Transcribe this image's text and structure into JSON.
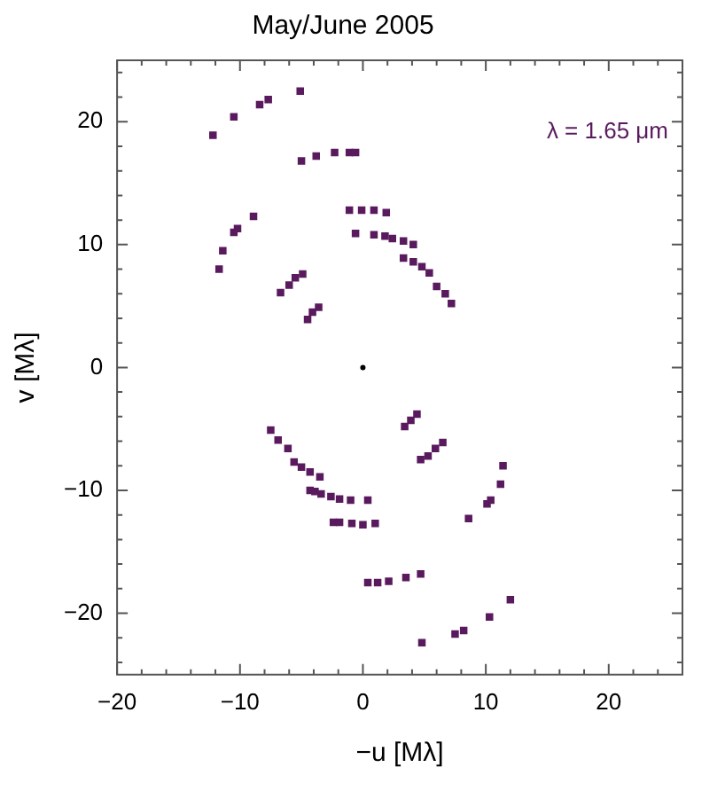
{
  "chart_data": {
    "type": "scatter",
    "title": "May/June 2005",
    "xlabel": "−u [Mλ]",
    "ylabel": "v [Mλ]",
    "annotations": [
      "λ = 1.65 μm"
    ],
    "xlim": [
      -20,
      26
    ],
    "ylim": [
      -25,
      25
    ],
    "xticks": [
      -20,
      {
        "value": -18,
        "label": null
      },
      {
        "value": -16,
        "label": null
      },
      {
        "value": -14,
        "label": null
      },
      {
        "value": -12,
        "label": null
      },
      -10,
      {
        "value": -8,
        "label": null
      },
      {
        "value": -6,
        "label": null
      },
      {
        "value": -4,
        "label": null
      },
      {
        "value": -2,
        "label": null
      },
      0,
      {
        "value": 2,
        "label": null
      },
      {
        "value": 4,
        "label": null
      },
      {
        "value": 6,
        "label": null
      },
      {
        "value": 8,
        "label": null
      },
      10,
      {
        "value": 12,
        "label": null
      },
      {
        "value": 14,
        "label": null
      },
      {
        "value": 16,
        "label": null
      },
      {
        "value": 18,
        "label": null
      },
      20,
      {
        "value": 22,
        "label": null
      },
      {
        "value": 24,
        "label": null
      }
    ],
    "yticks": [
      {
        "value": -24,
        "label": null
      },
      {
        "value": -22,
        "label": null
      },
      -20,
      {
        "value": -18,
        "label": null
      },
      {
        "value": -16,
        "label": null
      },
      {
        "value": -14,
        "label": null
      },
      {
        "value": -12,
        "label": null
      },
      -10,
      {
        "value": -8,
        "label": null
      },
      {
        "value": -6,
        "label": null
      },
      {
        "value": -4,
        "label": null
      },
      {
        "value": -2,
        "label": null
      },
      0,
      {
        "value": 2,
        "label": null
      },
      {
        "value": 4,
        "label": null
      },
      {
        "value": 6,
        "label": null
      },
      {
        "value": 8,
        "label": null
      },
      10,
      {
        "value": 12,
        "label": null
      },
      {
        "value": 14,
        "label": null
      },
      {
        "value": 16,
        "label": null
      },
      {
        "value": 18,
        "label": null
      },
      20,
      {
        "value": 22,
        "label": null
      },
      {
        "value": 24,
        "label": null
      }
    ],
    "grid": false,
    "legend": false,
    "series": [
      {
        "color": "#5a1a5e",
        "marker": "square",
        "x": [
          -12.2,
          -10.5,
          -8.4,
          -7.7,
          -5.1,
          -5.0,
          -3.8,
          -2.3,
          -1.1,
          -0.6,
          -11.7,
          -11.4,
          -10.5,
          -10.2,
          -8.9,
          -6.7,
          -6.0,
          -5.5,
          -4.9,
          -4.5,
          -4.1,
          -3.6,
          -1.1,
          -0.1,
          0.9,
          1.9,
          -0.6,
          0.9,
          1.8,
          2.4,
          3.3,
          4.1,
          3.3,
          4.1,
          4.8,
          5.4,
          6.0,
          6.7,
          7.2,
          -7.5,
          -6.9,
          -6.1,
          -5.6,
          -5.0,
          -4.3,
          -3.5,
          -4.3,
          -3.9,
          -3.4,
          -2.6,
          -1.9,
          -1.0,
          0.4,
          -2.4,
          -1.9,
          -0.9,
          0.0,
          1.0,
          0.4,
          1.2,
          2.1,
          3.4,
          3.9,
          4.4,
          4.7,
          5.3,
          5.9,
          6.5,
          11.4,
          11.2,
          10.4,
          10.1,
          8.6,
          3.5,
          4.7,
          4.8,
          7.5,
          8.2,
          10.3,
          12.0
        ],
        "values": [
          18.9,
          20.4,
          21.4,
          21.8,
          22.5,
          16.8,
          17.2,
          17.5,
          17.5,
          17.5,
          8.0,
          9.5,
          11.0,
          11.3,
          12.3,
          6.1,
          6.7,
          7.3,
          7.6,
          3.9,
          4.5,
          4.9,
          12.8,
          12.8,
          12.8,
          12.6,
          10.9,
          10.8,
          10.7,
          10.5,
          10.3,
          10.0,
          8.9,
          8.6,
          8.2,
          7.7,
          6.6,
          6.0,
          5.2,
          -5.1,
          -5.9,
          -6.6,
          -7.7,
          -8.1,
          -8.5,
          -8.9,
          -10.0,
          -10.1,
          -10.3,
          -10.5,
          -10.7,
          -10.8,
          -10.8,
          -12.6,
          -12.6,
          -12.7,
          -12.8,
          -12.7,
          -17.5,
          -17.5,
          -17.4,
          -4.8,
          -4.3,
          -3.8,
          -7.5,
          -7.2,
          -6.6,
          -6.1,
          -8.0,
          -9.5,
          -10.8,
          -11.1,
          -12.3,
          -17.1,
          -16.8,
          -22.4,
          -21.7,
          -21.4,
          -20.3,
          -18.9
        ]
      },
      {
        "color": "#000000",
        "marker": "circle",
        "x": [
          0
        ],
        "values": [
          0
        ]
      }
    ]
  }
}
